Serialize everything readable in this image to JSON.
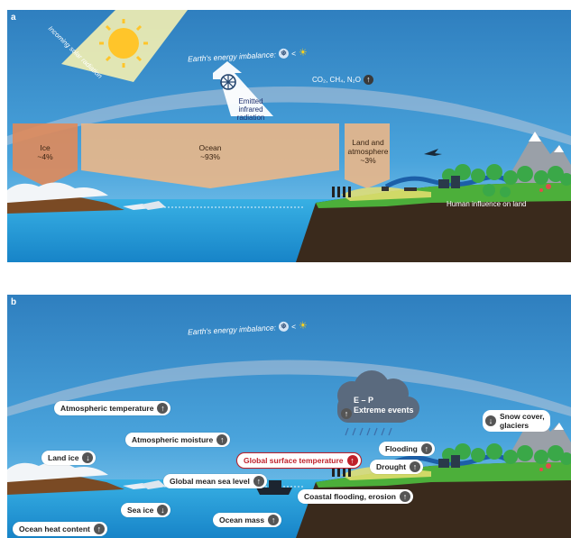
{
  "panel_a": {
    "label": "a",
    "imbalance_label": "Earth's energy imbalance:",
    "solar_label": "Incoming solar radiation",
    "ir_line1": "Emitted",
    "ir_line2": "infrared radiation",
    "ghg_label": "CO₂, CH₄, N₂O",
    "ice_name": "Ice",
    "ice_value": "~4%",
    "ocean_name": "Ocean",
    "ocean_value": "~93%",
    "land_name1": "Land and",
    "land_name2": "atmosphere",
    "land_value": "~3%",
    "human_label": "Human influence on land"
  },
  "panel_b": {
    "label": "b",
    "imbalance_label": "Earth's energy imbalance:",
    "atmospheric_temperature": "Atmospheric temperature",
    "atmospheric_moisture": "Atmospheric moisture",
    "land_ice": "Land ice",
    "global_surface_temperature": "Global surface temperature",
    "global_mean_sea_level": "Global mean sea level",
    "sea_ice": "Sea ice",
    "ocean_heat_content": "Ocean heat content",
    "ocean_mass": "Ocean mass",
    "e_minus_p": "E – P",
    "extreme_events": "Extreme events",
    "flooding": "Flooding",
    "drought": "Drought",
    "coastal_flooding": "Coastal flooding, erosion",
    "snow_cover1": "Snow cover,",
    "snow_cover2": "glaciers"
  },
  "symbols": {
    "up": "↑",
    "down": "↓",
    "less_than": "<",
    "snowflake": "❅",
    "sun": "☀"
  },
  "colors": {
    "sky_top": "#2f7fbf",
    "sky_bottom": "#5bb6e6",
    "ocean": "#1e9bd8",
    "heat_box": "#e0b080",
    "red_accent": "#c0202a",
    "land_green": "#4caf3a",
    "cliff": "#3a2a1c"
  }
}
